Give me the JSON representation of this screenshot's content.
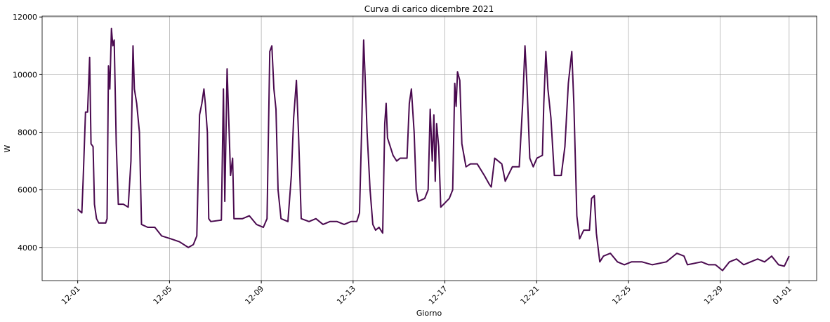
{
  "chart_data": {
    "type": "line",
    "title": "Curva di carico dicembre 2021",
    "xlabel": "Giorno",
    "ylabel": "W",
    "x": [
      0,
      0.18,
      0.24,
      0.34,
      0.43,
      0.52,
      0.58,
      0.67,
      0.73,
      0.82,
      0.92,
      1.22,
      1.28,
      1.34,
      1.4,
      1.47,
      1.53,
      1.59,
      1.68,
      1.77,
      1.99,
      2.2,
      2.32,
      2.41,
      2.47,
      2.57,
      2.69,
      2.78,
      3.05,
      3.36,
      3.66,
      4.06,
      4.43,
      4.82,
      5.04,
      5.19,
      5.31,
      5.41,
      5.5,
      5.56,
      5.65,
      5.71,
      5.8,
      6.26,
      6.35,
      6.41,
      6.51,
      6.6,
      6.66,
      6.75,
      6.81,
      7.18,
      7.48,
      7.79,
      8.09,
      8.25,
      8.37,
      8.46,
      8.55,
      8.64,
      8.73,
      8.86,
      9.16,
      9.31,
      9.41,
      9.53,
      9.62,
      9.74,
      10.08,
      10.38,
      10.69,
      10.99,
      11.3,
      11.61,
      11.91,
      12.16,
      12.28,
      12.37,
      12.46,
      12.52,
      12.61,
      12.74,
      12.86,
      12.98,
      13.13,
      13.29,
      13.38,
      13.44,
      13.5,
      13.74,
      13.9,
      14.05,
      14.35,
      14.45,
      14.54,
      14.66,
      14.75,
      14.84,
      15.12,
      15.27,
      15.36,
      15.45,
      15.52,
      15.58,
      15.64,
      15.73,
      15.82,
      16.19,
      16.34,
      16.43,
      16.49,
      16.55,
      16.65,
      16.74,
      16.92,
      17.11,
      17.41,
      17.72,
      17.93,
      18.02,
      18.17,
      18.48,
      18.63,
      18.94,
      19.24,
      19.39,
      19.49,
      19.58,
      19.7,
      19.85,
      20.01,
      20.25,
      20.31,
      20.4,
      20.49,
      20.62,
      20.77,
      21.07,
      21.23,
      21.38,
      21.53,
      21.62,
      21.75,
      21.87,
      22.05,
      22.3,
      22.39,
      22.51,
      22.6,
      22.75,
      22.91,
      23.21,
      23.52,
      23.82,
      24.13,
      24.59,
      25.04,
      25.65,
      26.11,
      26.42,
      26.57,
      27.18,
      27.49,
      27.79,
      28.1,
      28.4,
      28.71,
      29.02,
      29.32,
      29.63,
      29.93,
      30.24,
      30.54,
      30.79,
      31.0
    ],
    "series": [
      {
        "name": "W",
        "color": "#4a0a4f",
        "values": [
          5330,
          5200,
          6400,
          8700,
          8700,
          10600,
          7600,
          7500,
          5500,
          5000,
          4850,
          4850,
          5000,
          10300,
          9500,
          11600,
          11000,
          11200,
          7600,
          5500,
          5500,
          5400,
          7000,
          11000,
          9500,
          9000,
          8000,
          4800,
          4700,
          4700,
          4400,
          4300,
          4200,
          4000,
          4100,
          4400,
          8600,
          9000,
          9500,
          9000,
          8000,
          5000,
          4900,
          4950,
          9500,
          5600,
          10200,
          8000,
          6500,
          7100,
          5000,
          5000,
          5100,
          4800,
          4700,
          5000,
          10800,
          11000,
          9500,
          8800,
          6000,
          5000,
          4900,
          6500,
          8500,
          9800,
          8000,
          5000,
          4900,
          5000,
          4800,
          4900,
          4900,
          4800,
          4900,
          4900,
          5200,
          8000,
          11200,
          10000,
          8000,
          6000,
          4800,
          4600,
          4700,
          4500,
          8300,
          9000,
          7800,
          7200,
          7000,
          7100,
          7100,
          9000,
          9500,
          8000,
          6000,
          5600,
          5700,
          6000,
          8800,
          7000,
          8600,
          6300,
          8300,
          7500,
          5400,
          5700,
          6000,
          9700,
          8900,
          10100,
          9800,
          7600,
          6800,
          6900,
          6900,
          6500,
          6200,
          6100,
          7100,
          6900,
          6300,
          6800,
          6800,
          9000,
          11000,
          9600,
          7100,
          6800,
          7100,
          7200,
          9000,
          10800,
          9500,
          8500,
          6500,
          6500,
          7500,
          9700,
          10800,
          9000,
          5100,
          4300,
          4600,
          4600,
          5700,
          5800,
          4500,
          3500,
          3700,
          3800,
          3500,
          3400,
          3500,
          3500,
          3400,
          3500,
          3800,
          3700,
          3400,
          3500,
          3400,
          3400,
          3200,
          3500,
          3600,
          3400,
          3500,
          3600,
          3500,
          3700,
          3400,
          3350,
          3700
        ]
      }
    ],
    "xlim": [
      -1.55,
      32.2
    ],
    "ylim": [
      2850,
      12030
    ],
    "xticks": [
      {
        "value": 0,
        "label": "12-01"
      },
      {
        "value": 4,
        "label": "12-05"
      },
      {
        "value": 8,
        "label": "12-09"
      },
      {
        "value": 12,
        "label": "12-13"
      },
      {
        "value": 16,
        "label": "12-17"
      },
      {
        "value": 20,
        "label": "12-21"
      },
      {
        "value": 24,
        "label": "12-25"
      },
      {
        "value": 28,
        "label": "12-29"
      },
      {
        "value": 31,
        "label": "01-01"
      }
    ],
    "yticks": [
      4000,
      6000,
      8000,
      10000,
      12000
    ],
    "grid": true
  }
}
